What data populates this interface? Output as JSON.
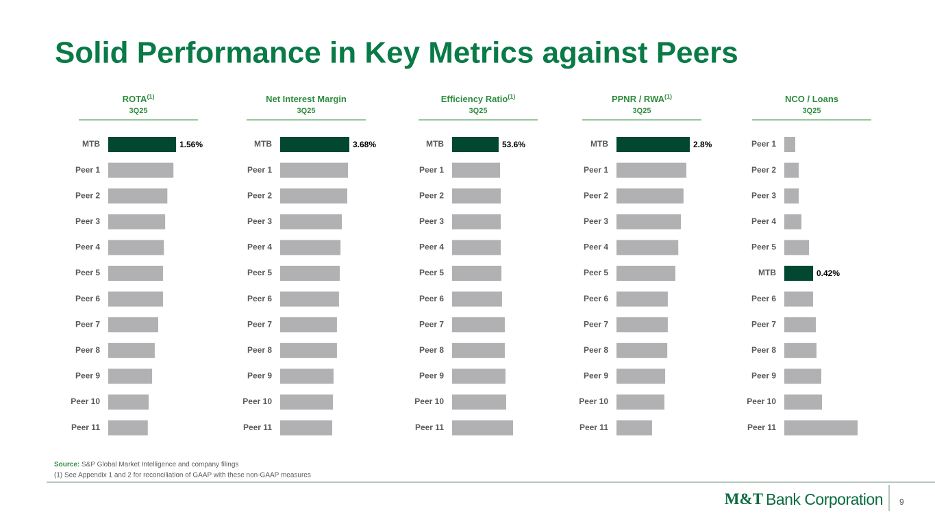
{
  "slide_title": "Solid Performance in Key Metrics against Peers",
  "chart_data": [
    {
      "type": "bar",
      "orientation": "horizontal",
      "title": "ROTA",
      "title_sup": "(1)",
      "subtitle": "3Q25",
      "categories": [
        "MTB",
        "Peer 1",
        "Peer 2",
        "Peer 3",
        "Peer 4",
        "Peer 5",
        "Peer 6",
        "Peer 7",
        "Peer 8",
        "Peer 9",
        "Peer 10",
        "Peer 11"
      ],
      "values": [
        1.56,
        1.5,
        1.36,
        1.31,
        1.28,
        1.26,
        1.26,
        1.15,
        1.07,
        1.01,
        0.93,
        0.91
      ],
      "value_labels": [
        "1.56%",
        null,
        null,
        null,
        null,
        null,
        null,
        null,
        null,
        null,
        null,
        null
      ],
      "colors": [
        "#024731",
        "#b1b1b3",
        "#b1b1b3",
        "#b1b1b3",
        "#b1b1b3",
        "#b1b1b3",
        "#b1b1b3",
        "#b1b1b3",
        "#b1b1b3",
        "#b1b1b3",
        "#b1b1b3",
        "#b1b1b3"
      ]
    },
    {
      "type": "bar",
      "orientation": "horizontal",
      "title": "Net Interest Margin",
      "subtitle": "3Q25",
      "categories": [
        "MTB",
        "Peer 1",
        "Peer 2",
        "Peer 3",
        "Peer 4",
        "Peer 5",
        "Peer 6",
        "Peer 7",
        "Peer 8",
        "Peer 9",
        "Peer 10",
        "Peer 11"
      ],
      "values": [
        3.68,
        3.61,
        3.57,
        3.28,
        3.21,
        3.17,
        3.13,
        3.02,
        3.02,
        2.84,
        2.81,
        2.77
      ],
      "value_labels": [
        "3.68%",
        null,
        null,
        null,
        null,
        null,
        null,
        null,
        null,
        null,
        null,
        null
      ],
      "colors": [
        "#024731",
        "#b1b1b3",
        "#b1b1b3",
        "#b1b1b3",
        "#b1b1b3",
        "#b1b1b3",
        "#b1b1b3",
        "#b1b1b3",
        "#b1b1b3",
        "#b1b1b3",
        "#b1b1b3",
        "#b1b1b3"
      ]
    },
    {
      "type": "bar",
      "orientation": "horizontal",
      "title": "Efficiency Ratio",
      "title_sup": "(1)",
      "subtitle": "3Q25",
      "categories": [
        "MTB",
        "Peer 1",
        "Peer 2",
        "Peer 3",
        "Peer 4",
        "Peer 5",
        "Peer 6",
        "Peer 7",
        "Peer 8",
        "Peer 9",
        "Peer 10",
        "Peer 11"
      ],
      "values": [
        53.6,
        55.2,
        56.0,
        56.0,
        56.0,
        56.8,
        57.5,
        60.7,
        60.7,
        61.5,
        62.3,
        70.2
      ],
      "value_labels": [
        "53.6%",
        null,
        null,
        null,
        null,
        null,
        null,
        null,
        null,
        null,
        null,
        null
      ],
      "colors": [
        "#024731",
        "#b1b1b3",
        "#b1b1b3",
        "#b1b1b3",
        "#b1b1b3",
        "#b1b1b3",
        "#b1b1b3",
        "#b1b1b3",
        "#b1b1b3",
        "#b1b1b3",
        "#b1b1b3",
        "#b1b1b3"
      ]
    },
    {
      "type": "bar",
      "orientation": "horizontal",
      "title": "PPNR / RWA",
      "title_sup": "(1)",
      "subtitle": "3Q25",
      "categories": [
        "MTB",
        "Peer 1",
        "Peer 2",
        "Peer 3",
        "Peer 4",
        "Peer 5",
        "Peer 6",
        "Peer 7",
        "Peer 8",
        "Peer 9",
        "Peer 10",
        "Peer 11"
      ],
      "values": [
        2.8,
        2.67,
        2.56,
        2.46,
        2.36,
        2.25,
        1.96,
        1.96,
        1.94,
        1.86,
        1.83,
        1.36
      ],
      "value_labels": [
        "2.8%",
        null,
        null,
        null,
        null,
        null,
        null,
        null,
        null,
        null,
        null,
        null
      ],
      "colors": [
        "#024731",
        "#b1b1b3",
        "#b1b1b3",
        "#b1b1b3",
        "#b1b1b3",
        "#b1b1b3",
        "#b1b1b3",
        "#b1b1b3",
        "#b1b1b3",
        "#b1b1b3",
        "#b1b1b3",
        "#b1b1b3"
      ]
    },
    {
      "type": "bar",
      "orientation": "horizontal",
      "title": "NCO / Loans",
      "subtitle": "3Q25",
      "categories": [
        "Peer 1",
        "Peer 2",
        "Peer 3",
        "Peer 4",
        "Peer 5",
        "MTB",
        "Peer 6",
        "Peer 7",
        "Peer 8",
        "Peer 9",
        "Peer 10",
        "Peer 11"
      ],
      "values": [
        0.16,
        0.21,
        0.21,
        0.25,
        0.36,
        0.42,
        0.42,
        0.46,
        0.47,
        0.54,
        0.55,
        1.07
      ],
      "value_labels": [
        null,
        null,
        null,
        null,
        null,
        "0.42%",
        null,
        null,
        null,
        null,
        null,
        null
      ],
      "colors": [
        "#b1b1b3",
        "#b1b1b3",
        "#b1b1b3",
        "#b1b1b3",
        "#b1b1b3",
        "#024731",
        "#b1b1b3",
        "#b1b1b3",
        "#b1b1b3",
        "#b1b1b3",
        "#b1b1b3",
        "#b1b1b3"
      ]
    }
  ],
  "footer": {
    "source_label": "Source:",
    "source": "S&P Global Market Intelligence and company filings",
    "note": "(1) See Appendix 1 and 2 for reconciliation of GAAP with these non-GAAP measures",
    "logo_mark": "M&T",
    "logo_text": "Bank Corporation",
    "page_number": "9"
  }
}
